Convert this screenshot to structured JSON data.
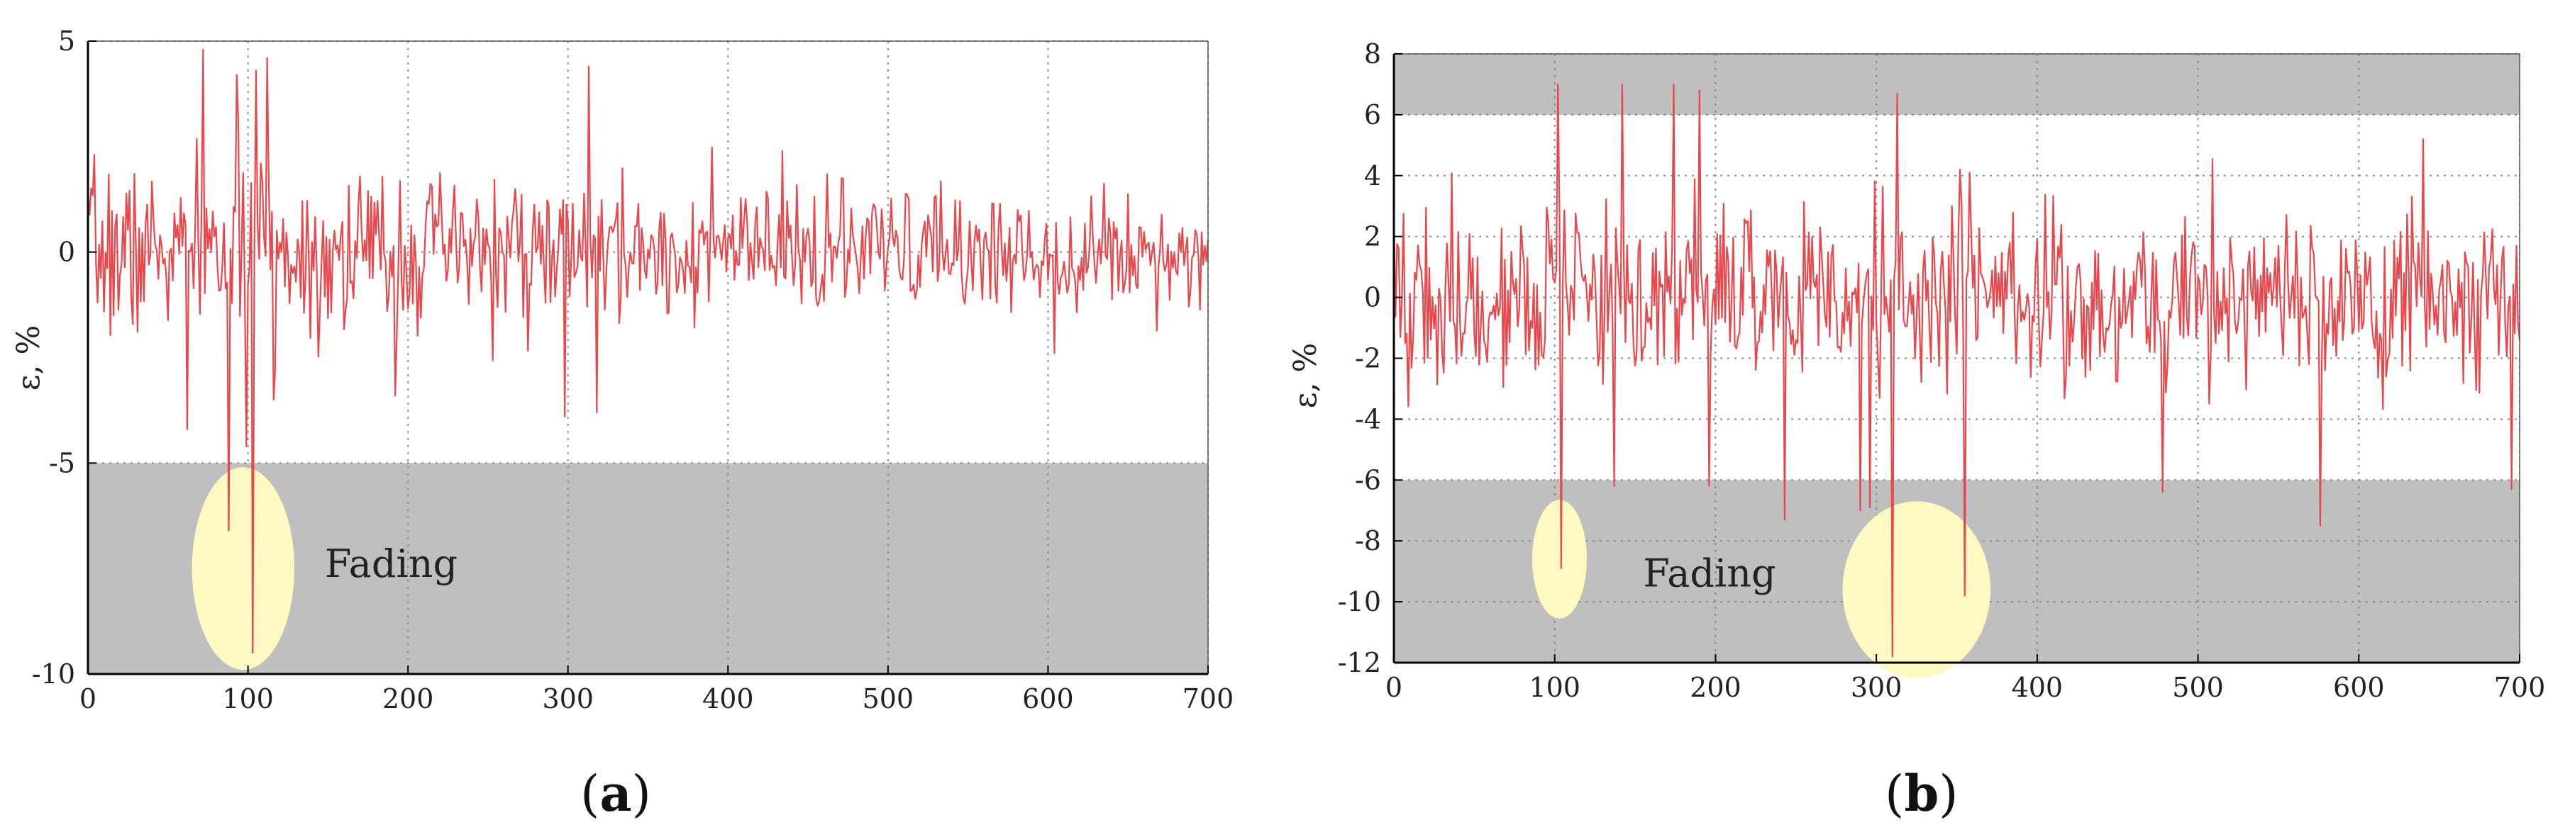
{
  "chart_data": [
    {
      "panel_label": "a",
      "type": "line",
      "ylabel": "ε, %",
      "xlabel": "",
      "xlim": [
        0,
        700
      ],
      "ylim": [
        -10,
        5
      ],
      "xticks": [
        0,
        100,
        200,
        300,
        400,
        500,
        600,
        700
      ],
      "yticks": [
        -10,
        -5,
        0,
        5
      ],
      "grid": true,
      "line_color": "#e8474b",
      "shaded_regions": [
        {
          "y_from": -10,
          "y_to": -5,
          "color": "#bfbfbf"
        }
      ],
      "highlights": [
        {
          "cx": 97,
          "cy": -7.5,
          "rx": 32,
          "ry": 2.4,
          "color": "#fff8c0"
        }
      ],
      "annotations": [
        {
          "text": "Fading",
          "x": 148,
          "y": -7.7
        }
      ],
      "spikes": [
        {
          "x": 62,
          "y": -4.2
        },
        {
          "x": 72,
          "y": 4.8
        },
        {
          "x": 88,
          "y": -6.6
        },
        {
          "x": 93,
          "y": 4.2
        },
        {
          "x": 99,
          "y": -4.6
        },
        {
          "x": 103,
          "y": -9.5
        },
        {
          "x": 105,
          "y": 4.3
        },
        {
          "x": 112,
          "y": 4.6
        },
        {
          "x": 116,
          "y": -3.5
        },
        {
          "x": 298,
          "y": -3.9
        },
        {
          "x": 313,
          "y": 4.4
        },
        {
          "x": 318,
          "y": -3.8
        },
        {
          "x": 192,
          "y": -3.4
        },
        {
          "x": 604,
          "y": -2.4
        }
      ],
      "series": [
        {
          "noise_profile": [
            [
              0,
              1.0
            ],
            [
              140,
              1.0
            ],
            [
              320,
              0.85
            ],
            [
              700,
              0.6
            ]
          ],
          "seed": 7,
          "n": 700
        }
      ]
    },
    {
      "panel_label": "b",
      "type": "line",
      "ylabel": "ε, %",
      "xlabel": "",
      "xlim": [
        0,
        700
      ],
      "ylim": [
        -12,
        8
      ],
      "xticks": [
        0,
        100,
        200,
        300,
        400,
        500,
        600,
        700
      ],
      "yticks": [
        -12,
        -10,
        -8,
        -6,
        -4,
        -2,
        0,
        2,
        4,
        6,
        8
      ],
      "grid": true,
      "line_color": "#e8474b",
      "shaded_regions": [
        {
          "y_from": 6,
          "y_to": 8,
          "color": "#bfbfbf"
        },
        {
          "y_from": -12,
          "y_to": -6,
          "color": "#bfbfbf"
        }
      ],
      "highlights": [
        {
          "cx": 103,
          "cy": -8.6,
          "rx": 17,
          "ry": 1.95,
          "color": "#fff8c0"
        },
        {
          "cx": 325,
          "cy": -9.6,
          "rx": 46,
          "ry": 2.9,
          "color": "#fff8c0"
        }
      ],
      "annotations": [
        {
          "text": "Fading",
          "x": 155,
          "y": -9.5
        }
      ],
      "spikes": [
        {
          "x": 102,
          "y": 7.0
        },
        {
          "x": 104,
          "y": -8.9
        },
        {
          "x": 142,
          "y": 7.0
        },
        {
          "x": 174,
          "y": 7.0
        },
        {
          "x": 190,
          "y": 6.8
        },
        {
          "x": 137,
          "y": -6.2
        },
        {
          "x": 196,
          "y": -6.2
        },
        {
          "x": 243,
          "y": -7.3
        },
        {
          "x": 290,
          "y": -7.0
        },
        {
          "x": 296,
          "y": -6.9
        },
        {
          "x": 310,
          "y": -11.8
        },
        {
          "x": 313,
          "y": 6.7
        },
        {
          "x": 355,
          "y": -9.8
        },
        {
          "x": 358,
          "y": 4.1
        },
        {
          "x": 352,
          "y": 4.2
        },
        {
          "x": 478,
          "y": -6.4
        },
        {
          "x": 576,
          "y": -7.5
        },
        {
          "x": 640,
          "y": 5.2
        },
        {
          "x": 695,
          "y": -6.3
        }
      ],
      "series": [
        {
          "noise_profile": [
            [
              0,
              1.5
            ],
            [
              700,
              1.4
            ]
          ],
          "seed": 19,
          "n": 700
        }
      ]
    }
  ]
}
